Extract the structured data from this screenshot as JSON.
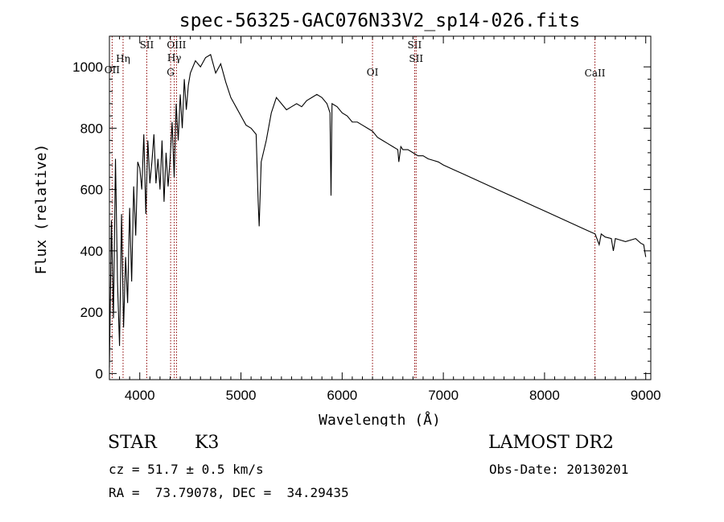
{
  "chart_data": {
    "type": "line",
    "title": "spec-56325-GAC076N33V2_sp14-026.fits",
    "xlabel": "Wavelength (Å)",
    "ylabel": "Flux (relative)",
    "xlim": [
      3700,
      9050
    ],
    "ylim": [
      -20,
      1100
    ],
    "xticks": [
      4000,
      5000,
      6000,
      7000,
      8000,
      9000
    ],
    "xtick_labels": [
      "4000",
      "5000",
      "6000",
      "7000",
      "8000",
      "9000"
    ],
    "yticks": [
      0,
      200,
      400,
      600,
      800,
      1000
    ],
    "ytick_labels": [
      "0",
      "200",
      "400",
      "600",
      "800",
      "1000"
    ],
    "grid": false,
    "series": [
      {
        "x": [
          3700,
          3720,
          3740,
          3760,
          3780,
          3800,
          3820,
          3840,
          3860,
          3880,
          3900,
          3920,
          3940,
          3960,
          3980,
          4000,
          4020,
          4040,
          4060,
          4080,
          4100,
          4120,
          4140,
          4160,
          4180,
          4200,
          4220,
          4240,
          4260,
          4280,
          4300,
          4320,
          4340,
          4360,
          4380,
          4400,
          4420,
          4440,
          4460,
          4480,
          4500,
          4550,
          4600,
          4650,
          4700,
          4750,
          4800,
          4850,
          4900,
          4950,
          5000,
          5050,
          5100,
          5150,
          5170,
          5180,
          5200,
          5250,
          5300,
          5350,
          5400,
          5450,
          5500,
          5550,
          5600,
          5650,
          5700,
          5750,
          5800,
          5850,
          5880,
          5890,
          5900,
          5950,
          6000,
          6050,
          6100,
          6150,
          6200,
          6250,
          6300,
          6350,
          6400,
          6450,
          6500,
          6550,
          6560,
          6580,
          6600,
          6650,
          6700,
          6750,
          6800,
          6850,
          6900,
          6950,
          7000,
          7100,
          7200,
          7300,
          7400,
          7500,
          7600,
          7700,
          7800,
          7900,
          8000,
          8100,
          8200,
          8300,
          8400,
          8500,
          8540,
          8560,
          8600,
          8660,
          8680,
          8700,
          8750,
          8800,
          8850,
          8900,
          8950,
          8980,
          9000
        ],
        "y": [
          20,
          500,
          180,
          700,
          300,
          90,
          520,
          150,
          380,
          230,
          540,
          300,
          610,
          450,
          690,
          670,
          600,
          780,
          520,
          760,
          620,
          690,
          780,
          620,
          700,
          600,
          760,
          560,
          720,
          610,
          700,
          820,
          640,
          880,
          760,
          910,
          800,
          960,
          860,
          940,
          980,
          1020,
          1000,
          1030,
          1040,
          980,
          1010,
          950,
          900,
          870,
          840,
          810,
          800,
          780,
          560,
          480,
          690,
          760,
          850,
          900,
          880,
          860,
          870,
          880,
          870,
          890,
          900,
          910,
          900,
          880,
          850,
          580,
          880,
          870,
          850,
          840,
          820,
          820,
          810,
          800,
          790,
          770,
          760,
          750,
          740,
          730,
          690,
          740,
          730,
          730,
          720,
          710,
          710,
          700,
          695,
          690,
          680,
          665,
          650,
          635,
          620,
          605,
          590,
          575,
          560,
          545,
          530,
          515,
          500,
          485,
          470,
          455,
          420,
          455,
          445,
          440,
          400,
          440,
          435,
          430,
          435,
          440,
          425,
          420,
          380
        ]
      }
    ],
    "line_markers": [
      {
        "label": "OII",
        "x": 3727
      },
      {
        "label": "Hη",
        "x": 3835
      },
      {
        "label": "SII",
        "x": 4069
      },
      {
        "label": "OIII",
        "x": 4363
      },
      {
        "label": "Hγ",
        "x": 4341
      },
      {
        "label": "G",
        "x": 4305
      },
      {
        "label": "OI",
        "x": 6300
      },
      {
        "label": "SII",
        "x": 6716
      },
      {
        "label": "SII",
        "x": 6731
      },
      {
        "label": "CaII",
        "x": 8498
      }
    ]
  },
  "info": {
    "class_label": "STAR",
    "subclass": "K3",
    "survey": "LAMOST DR2",
    "cz": "cz = 51.7 ± 0.5 km/s",
    "obs_date": "Obs-Date: 20130201",
    "coords": "RA =  73.79078, DEC =  34.29435"
  },
  "colors": {
    "line": "#000000",
    "marker": "#8b0000",
    "background": "#ffffff"
  }
}
